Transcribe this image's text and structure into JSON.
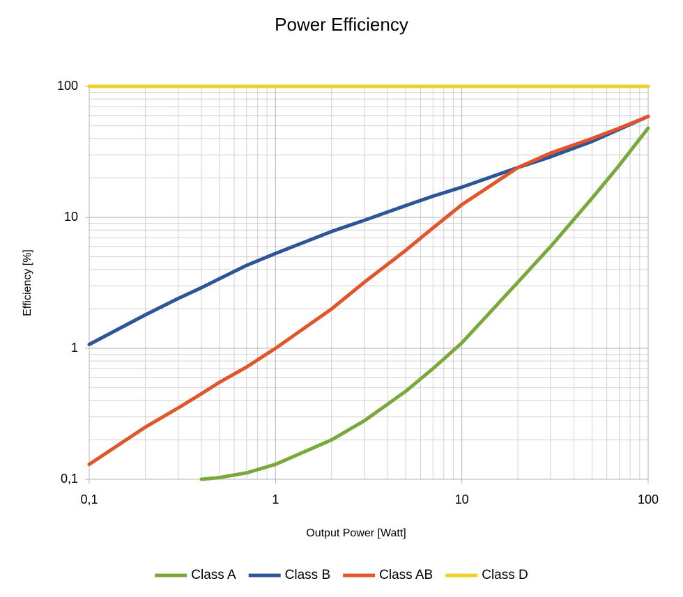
{
  "chart_data": {
    "type": "line",
    "title": "Power Efficiency",
    "x_label": "Output Power [Watt]",
    "y_label": "Efficiency [%]",
    "x": [
      0.1,
      0.2,
      0.3,
      0.4,
      0.5,
      0.7,
      1,
      2,
      3,
      5,
      7,
      10,
      20,
      30,
      50,
      70,
      100
    ],
    "series": [
      {
        "name": "Class A",
        "color": "#7aa83b",
        "values": [
          null,
          null,
          null,
          0.1,
          0.103,
          0.112,
          0.13,
          0.2,
          0.28,
          0.47,
          0.7,
          1.1,
          3.2,
          6,
          14,
          25,
          48
        ]
      },
      {
        "name": "Class B",
        "color": "#2e5597",
        "values": [
          1.07,
          1.8,
          2.4,
          2.9,
          3.4,
          4.3,
          5.3,
          7.8,
          9.5,
          12.3,
          14.5,
          17,
          24,
          29,
          38,
          47,
          59
        ]
      },
      {
        "name": "Class AB",
        "color": "#e0552a",
        "values": [
          0.13,
          0.25,
          0.35,
          0.45,
          0.55,
          0.72,
          1.0,
          2.0,
          3.2,
          5.6,
          8.3,
          12.5,
          24,
          31,
          40,
          48,
          59
        ]
      },
      {
        "name": "Class D",
        "color": "#f2d02b",
        "values": [
          100,
          100,
          100,
          100,
          100,
          100,
          100,
          100,
          100,
          100,
          100,
          100,
          100,
          100,
          100,
          100,
          100
        ]
      }
    ],
    "xlim": [
      0.1,
      100
    ],
    "ylim": [
      0.1,
      100
    ],
    "xticks": [
      {
        "value": 0.1,
        "label": "0,1"
      },
      1,
      10,
      100
    ],
    "yticks": [
      {
        "value": 0.1,
        "label": "0,1"
      },
      1,
      10,
      100
    ],
    "xscale": "log",
    "yscale": "log",
    "grid": true,
    "minor_grid": true,
    "legend": "bottom"
  }
}
